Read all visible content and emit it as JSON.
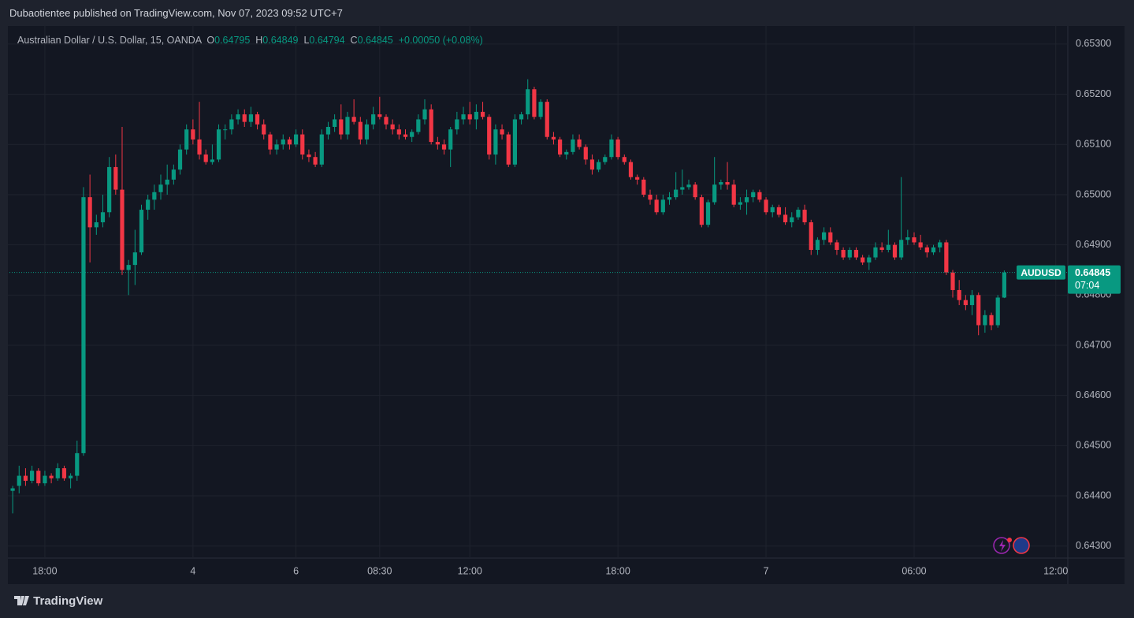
{
  "header": "Dubaotientee published on TradingView.com, Nov 07, 2023 09:52 UTC+7",
  "footer": {
    "brand": "TradingView"
  },
  "chart_data": {
    "type": "candlestick",
    "legend": {
      "name": "Australian Dollar / U.S. Dollar, 15, OANDA",
      "o_label": "O",
      "open": "0.64795",
      "h_label": "H",
      "high": "0.64849",
      "l_label": "L",
      "low": "0.64794",
      "c_label": "C",
      "close": "0.64845",
      "change": "+0.00050 (+0.08%)"
    },
    "price_label": {
      "symbol": "AUDUSD",
      "price": "0.64845",
      "countdown": "07:04"
    },
    "up_color": "#089981",
    "down_color": "#f23645",
    "grid": true,
    "ylim": [
      0.64276,
      0.65336
    ],
    "yticks": [
      {
        "value": 0.643,
        "label": "0.64300"
      },
      {
        "value": 0.644,
        "label": "0.64400"
      },
      {
        "value": 0.645,
        "label": "0.64500"
      },
      {
        "value": 0.646,
        "label": "0.64600"
      },
      {
        "value": 0.647,
        "label": "0.64700"
      },
      {
        "value": 0.648,
        "label": "0.64800"
      },
      {
        "value": 0.649,
        "label": "0.64900"
      },
      {
        "value": 0.65,
        "label": "0.65000"
      },
      {
        "value": 0.651,
        "label": "0.65100"
      },
      {
        "value": 0.652,
        "label": "0.65200"
      },
      {
        "value": 0.653,
        "label": "0.65300"
      }
    ],
    "categories": [
      null,
      null,
      null,
      null,
      null,
      "18:00",
      null,
      null,
      null,
      null,
      null,
      null,
      null,
      null,
      null,
      null,
      null,
      null,
      null,
      null,
      null,
      null,
      null,
      null,
      null,
      null,
      null,
      null,
      "4",
      null,
      null,
      null,
      null,
      null,
      null,
      null,
      null,
      null,
      null,
      null,
      null,
      null,
      null,
      null,
      "6",
      null,
      null,
      null,
      null,
      null,
      null,
      null,
      null,
      null,
      null,
      null,
      null,
      "08:30",
      null,
      null,
      null,
      null,
      null,
      null,
      null,
      null,
      null,
      null,
      null,
      null,
      null,
      "12:00",
      null,
      null,
      null,
      null,
      null,
      null,
      null,
      null,
      null,
      null,
      null,
      null,
      null,
      null,
      null,
      null,
      null,
      null,
      null,
      null,
      null,
      null,
      "18:00",
      null,
      null,
      null,
      null,
      null,
      null,
      null,
      null,
      null,
      null,
      null,
      null,
      null,
      null,
      null,
      null,
      null,
      null,
      null,
      null,
      null,
      null,
      "7",
      null,
      null,
      null,
      null,
      null,
      null,
      null,
      null,
      null,
      null,
      null,
      null,
      null,
      null,
      null,
      null,
      null,
      null,
      null,
      null,
      null,
      null,
      "06:00",
      null,
      null,
      null,
      null,
      null,
      null,
      null,
      null,
      null,
      null,
      null,
      null,
      null,
      null,
      null,
      null,
      null,
      null,
      null,
      null,
      null,
      "12:00",
      null
    ],
    "open": [
      0.6441,
      0.6442,
      0.6444,
      0.6443,
      0.6445,
      0.64425,
      0.6444,
      0.64435,
      0.64455,
      0.64435,
      0.6444,
      0.64485,
      0.64995,
      0.64935,
      0.64945,
      0.64965,
      0.65055,
      0.6501,
      0.6485,
      0.6486,
      0.64885,
      0.6497,
      0.6499,
      0.65005,
      0.6502,
      0.6503,
      0.6505,
      0.6509,
      0.6513,
      0.6511,
      0.6508,
      0.65065,
      0.6507,
      0.6513,
      0.6513,
      0.6515,
      0.6516,
      0.65145,
      0.6516,
      0.6514,
      0.6512,
      0.6509,
      0.651,
      0.6511,
      0.651,
      0.6512,
      0.6508,
      0.65075,
      0.6506,
      0.6512,
      0.65135,
      0.6515,
      0.6512,
      0.65155,
      0.65145,
      0.6511,
      0.6514,
      0.6516,
      0.65155,
      0.6514,
      0.6513,
      0.6512,
      0.65115,
      0.65125,
      0.6515,
      0.6517,
      0.65105,
      0.651,
      0.6509,
      0.6513,
      0.6515,
      0.6516,
      0.6515,
      0.65165,
      0.65155,
      0.6508,
      0.6513,
      0.6512,
      0.6506,
      0.6515,
      0.6516,
      0.6521,
      0.65155,
      0.65185,
      0.65115,
      0.6511,
      0.6508,
      0.65085,
      0.6511,
      0.65095,
      0.6507,
      0.6505,
      0.65065,
      0.65075,
      0.6511,
      0.65075,
      0.65065,
      0.65035,
      0.6503,
      0.65,
      0.6499,
      0.64965,
      0.6499,
      0.64995,
      0.6501,
      0.65015,
      0.6502,
      0.64995,
      0.6494,
      0.64985,
      0.6502,
      0.65025,
      0.6502,
      0.6498,
      0.64985,
      0.64995,
      0.65005,
      0.6499,
      0.64965,
      0.64975,
      0.6496,
      0.64945,
      0.64955,
      0.6497,
      0.64945,
      0.6489,
      0.6491,
      0.64925,
      0.64905,
      0.6489,
      0.64875,
      0.6489,
      0.64875,
      0.64865,
      0.64875,
      0.64895,
      0.6489,
      0.649,
      0.64875,
      0.6491,
      0.64915,
      0.64905,
      0.64895,
      0.64885,
      0.64895,
      0.64905,
      0.64845,
      0.6481,
      0.6479,
      0.6478,
      0.648,
      0.6474,
      0.6476,
      0.6474,
      0.64795,
      null,
      null,
      null,
      null,
      null,
      null,
      null,
      null,
      null
    ],
    "high": [
      0.6442,
      0.6446,
      0.64455,
      0.6446,
      0.64455,
      0.6445,
      0.64445,
      0.64465,
      0.6446,
      0.64445,
      0.6451,
      0.65015,
      0.6504,
      0.6496,
      0.65,
      0.65075,
      0.6508,
      0.65135,
      0.6487,
      0.6493,
      0.6498,
      0.65,
      0.6502,
      0.6504,
      0.6506,
      0.6506,
      0.651,
      0.6514,
      0.6515,
      0.65185,
      0.6509,
      0.651,
      0.6514,
      0.6514,
      0.6516,
      0.6517,
      0.6517,
      0.65175,
      0.65165,
      0.6515,
      0.65125,
      0.6511,
      0.6512,
      0.65115,
      0.6513,
      0.6513,
      0.6509,
      0.65085,
      0.6513,
      0.65145,
      0.6516,
      0.6518,
      0.65165,
      0.6519,
      0.65155,
      0.6515,
      0.65175,
      0.65195,
      0.6516,
      0.6515,
      0.6514,
      0.6513,
      0.6513,
      0.6516,
      0.6519,
      0.6518,
      0.65115,
      0.6511,
      0.65135,
      0.65165,
      0.65175,
      0.65185,
      0.6518,
      0.65185,
      0.6516,
      0.6514,
      0.6514,
      0.65125,
      0.6516,
      0.65165,
      0.6523,
      0.65215,
      0.6519,
      0.6519,
      0.65125,
      0.65115,
      0.6509,
      0.6512,
      0.6512,
      0.651,
      0.6508,
      0.6507,
      0.6508,
      0.6512,
      0.65115,
      0.6508,
      0.6507,
      0.6504,
      0.65035,
      0.6501,
      0.65,
      0.65,
      0.65005,
      0.65045,
      0.6505,
      0.6503,
      0.65025,
      0.65,
      0.6499,
      0.65075,
      0.6503,
      0.65065,
      0.6503,
      0.64995,
      0.6501,
      0.6501,
      0.6501,
      0.64995,
      0.6498,
      0.6498,
      0.64975,
      0.64965,
      0.64975,
      0.6498,
      0.6495,
      0.64915,
      0.64935,
      0.64935,
      0.6491,
      0.64895,
      0.64895,
      0.64895,
      0.6488,
      0.6488,
      0.64905,
      0.64905,
      0.6493,
      0.64905,
      0.65035,
      0.6493,
      0.64925,
      0.6492,
      0.649,
      0.649,
      0.6491,
      0.6491,
      0.6485,
      0.6483,
      0.648,
      0.6481,
      0.64805,
      0.6477,
      0.64765,
      0.648,
      0.64849,
      null,
      null,
      null,
      null,
      null,
      null,
      null,
      null,
      null
    ],
    "low": [
      0.64365,
      0.64405,
      0.6442,
      0.64425,
      0.6442,
      0.6442,
      0.64425,
      0.6443,
      0.6443,
      0.64415,
      0.6443,
      0.6448,
      0.64865,
      0.6492,
      0.64935,
      0.64955,
      0.65,
      0.6484,
      0.648,
      0.6482,
      0.6488,
      0.6495,
      0.6497,
      0.6499,
      0.65,
      0.6502,
      0.6504,
      0.6508,
      0.651,
      0.6507,
      0.6506,
      0.6506,
      0.65065,
      0.6511,
      0.6512,
      0.6514,
      0.65135,
      0.65135,
      0.6513,
      0.6511,
      0.6508,
      0.6508,
      0.6509,
      0.6509,
      0.65095,
      0.6507,
      0.65065,
      0.65055,
      0.65055,
      0.6511,
      0.65125,
      0.6511,
      0.6511,
      0.6514,
      0.651,
      0.651,
      0.6513,
      0.6515,
      0.6513,
      0.6512,
      0.6511,
      0.6511,
      0.65105,
      0.6512,
      0.6514,
      0.651,
      0.6509,
      0.6508,
      0.65055,
      0.6512,
      0.6514,
      0.6514,
      0.6513,
      0.6515,
      0.6507,
      0.6506,
      0.6511,
      0.65055,
      0.65055,
      0.6514,
      0.6515,
      0.6515,
      0.6515,
      0.6511,
      0.651,
      0.65075,
      0.6507,
      0.6508,
      0.6509,
      0.6506,
      0.6504,
      0.65045,
      0.6506,
      0.6507,
      0.6507,
      0.6506,
      0.6503,
      0.6502,
      0.64995,
      0.6498,
      0.6496,
      0.6496,
      0.6498,
      0.6499,
      0.65,
      0.6501,
      0.6499,
      0.64935,
      0.64935,
      0.6498,
      0.6501,
      0.6501,
      0.64975,
      0.6497,
      0.6496,
      0.64985,
      0.64985,
      0.6496,
      0.64955,
      0.64955,
      0.6494,
      0.64935,
      0.6495,
      0.6494,
      0.6488,
      0.6488,
      0.649,
      0.649,
      0.6488,
      0.6487,
      0.6487,
      0.6487,
      0.6486,
      0.6485,
      0.6487,
      0.64885,
      0.64885,
      0.6487,
      0.6487,
      0.649,
      0.649,
      0.6489,
      0.64875,
      0.6488,
      0.64885,
      0.6484,
      0.64795,
      0.6478,
      0.6477,
      0.6476,
      0.6472,
      0.64725,
      0.6473,
      0.64735,
      0.64794,
      null,
      null,
      null,
      null,
      null,
      null,
      null,
      null,
      null
    ],
    "close": [
      0.64415,
      0.6444,
      0.6443,
      0.6445,
      0.64425,
      0.6444,
      0.64435,
      0.64455,
      0.64435,
      0.6444,
      0.64485,
      0.64995,
      0.64935,
      0.64945,
      0.64965,
      0.65055,
      0.6501,
      0.6485,
      0.6486,
      0.64885,
      0.6497,
      0.6499,
      0.65005,
      0.6502,
      0.6503,
      0.6505,
      0.6509,
      0.6513,
      0.6511,
      0.6508,
      0.65065,
      0.6507,
      0.6513,
      0.6513,
      0.6515,
      0.6516,
      0.65145,
      0.6516,
      0.6514,
      0.6512,
      0.6509,
      0.651,
      0.6511,
      0.651,
      0.6512,
      0.6508,
      0.65075,
      0.6506,
      0.6512,
      0.65135,
      0.6515,
      0.6512,
      0.65155,
      0.65145,
      0.6511,
      0.6514,
      0.6516,
      0.65155,
      0.6514,
      0.6513,
      0.6512,
      0.65115,
      0.65125,
      0.6515,
      0.6517,
      0.65105,
      0.651,
      0.6509,
      0.6513,
      0.6515,
      0.6516,
      0.6515,
      0.65165,
      0.65155,
      0.6508,
      0.6513,
      0.6512,
      0.6506,
      0.6515,
      0.6516,
      0.6521,
      0.65155,
      0.65185,
      0.65115,
      0.6511,
      0.6508,
      0.65085,
      0.6511,
      0.65095,
      0.6507,
      0.6505,
      0.65065,
      0.65075,
      0.6511,
      0.65075,
      0.65065,
      0.65035,
      0.6503,
      0.65,
      0.6499,
      0.64965,
      0.6499,
      0.64995,
      0.6501,
      0.65015,
      0.6502,
      0.64995,
      0.6494,
      0.64985,
      0.6502,
      0.65025,
      0.6502,
      0.6498,
      0.64985,
      0.64995,
      0.65005,
      0.6499,
      0.64965,
      0.64975,
      0.6496,
      0.64945,
      0.64955,
      0.6497,
      0.64945,
      0.6489,
      0.6491,
      0.64925,
      0.64905,
      0.6489,
      0.64875,
      0.6489,
      0.64875,
      0.64865,
      0.64875,
      0.64895,
      0.6489,
      0.649,
      0.64875,
      0.6491,
      0.64915,
      0.64905,
      0.64895,
      0.64885,
      0.64895,
      0.64905,
      0.64845,
      0.6481,
      0.6479,
      0.6478,
      0.648,
      0.6474,
      0.6476,
      0.6474,
      0.64795,
      0.64845,
      null,
      null,
      null,
      null,
      null,
      null,
      null,
      null,
      null
    ]
  }
}
